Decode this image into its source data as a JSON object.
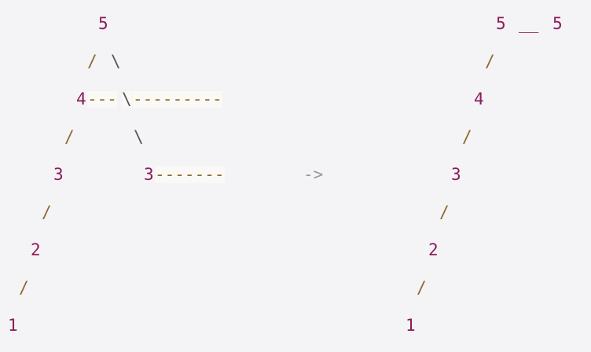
{
  "left_tree": {
    "n5": "5",
    "n4": "4",
    "n3a": "3",
    "n3b": "3",
    "n2": "2",
    "n1": "1",
    "slash": "/",
    "backslash": "\\",
    "dash_4_short": "---",
    "dash_4_long": "---------",
    "dash_3": "-------"
  },
  "arrow": "->",
  "right_tree": {
    "n5a": "5",
    "n5b": "5",
    "link_55": "__",
    "n4": "4",
    "n3": "3",
    "n2": "2",
    "n1": "1",
    "slash": "/"
  }
}
